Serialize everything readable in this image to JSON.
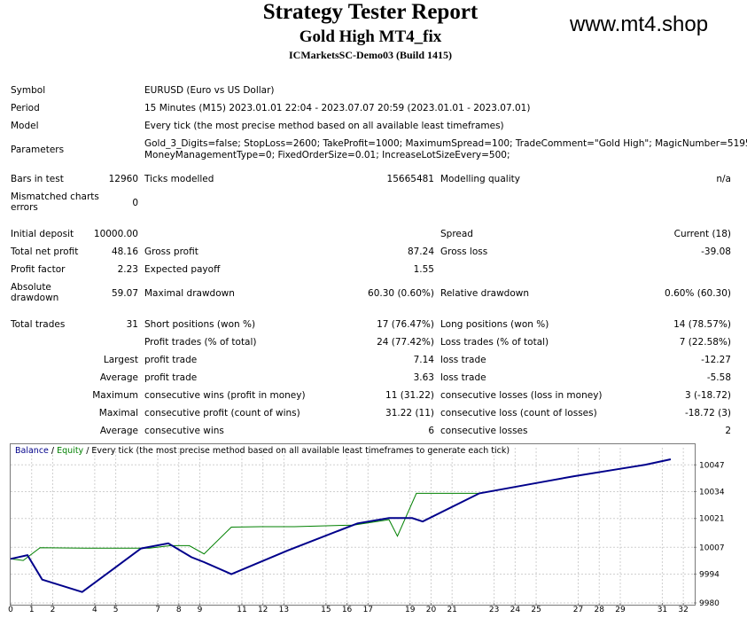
{
  "header": {
    "title": "Strategy Tester Report",
    "subtitle": "Gold High MT4_fix",
    "server": "ICMarketsSC-Demo03 (Build 1415)",
    "watermark": "www.mt4.shop"
  },
  "info": {
    "symbol_label": "Symbol",
    "symbol_value": "EURUSD (Euro vs US Dollar)",
    "period_label": "Period",
    "period_value": "15 Minutes (M15) 2023.01.01 22:04 - 2023.07.07 20:59 (2023.01.01 - 2023.07.01)",
    "model_label": "Model",
    "model_value": "Every tick (the most precise method based on all available least timeframes)",
    "parameters_label": "Parameters",
    "parameters_value_1": "Gold_3_Digits=false; StopLoss=2600; TakeProfit=1000; MaximumSpread=100; TradeComment=\"Gold High\"; MagicNumber=5195;",
    "parameters_value_2": "MoneyManagementType=0; FixedOrderSize=0.01; IncreaseLotSizeEvery=500;"
  },
  "bars": {
    "bars_label": "Bars in test",
    "bars_value": "12960",
    "ticks_label": "Ticks modelled",
    "ticks_value": "15665481",
    "quality_label": "Modelling quality",
    "quality_value": "n/a",
    "mismatch_label": "Mismatched charts errors",
    "mismatch_value": "0"
  },
  "results": {
    "initial_deposit_label": "Initial deposit",
    "initial_deposit_value": "10000.00",
    "spread_label": "Spread",
    "spread_value": "Current (18)",
    "net_profit_label": "Total net profit",
    "net_profit_value": "48.16",
    "gross_profit_label": "Gross profit",
    "gross_profit_value": "87.24",
    "gross_loss_label": "Gross loss",
    "gross_loss_value": "-39.08",
    "profit_factor_label": "Profit factor",
    "profit_factor_value": "2.23",
    "expected_payoff_label": "Expected payoff",
    "expected_payoff_value": "1.55",
    "abs_drawdown_label": "Absolute drawdown",
    "abs_drawdown_value": "59.07",
    "max_drawdown_label": "Maximal drawdown",
    "max_drawdown_value": "60.30 (0.60%)",
    "rel_drawdown_label": "Relative drawdown",
    "rel_drawdown_value": "0.60% (60.30)"
  },
  "trades": {
    "total_label": "Total trades",
    "total_value": "31",
    "short_label": "Short positions (won %)",
    "short_value": "17 (76.47%)",
    "long_label": "Long positions (won %)",
    "long_value": "14 (78.57%)",
    "profit_trades_label": "Profit trades (% of total)",
    "profit_trades_value": "24 (77.42%)",
    "loss_trades_label": "Loss trades (% of total)",
    "loss_trades_value": "7 (22.58%)",
    "largest_label": "Largest",
    "largest_profit_label": "profit trade",
    "largest_profit_value": "7.14",
    "largest_loss_label": "loss trade",
    "largest_loss_value": "-12.27",
    "average_label": "Average",
    "average_profit_label": "profit trade",
    "average_profit_value": "3.63",
    "average_loss_label": "loss trade",
    "average_loss_value": "-5.58",
    "maximum_label": "Maximum",
    "max_wins_label": "consecutive wins (profit in money)",
    "max_wins_value": "11 (31.22)",
    "max_losses_label": "consecutive losses (loss in money)",
    "max_losses_value": "3 (-18.72)",
    "maximal_label": "Maximal",
    "maximal_profit_label": "consecutive profit (count of wins)",
    "maximal_profit_value": "31.22 (11)",
    "maximal_loss_label": "consecutive loss (count of losses)",
    "maximal_loss_value": "-18.72 (3)",
    "avg_consec_label": "Average",
    "avg_wins_label": "consecutive wins",
    "avg_wins_value": "6",
    "avg_losses_label": "consecutive losses",
    "avg_losses_value": "2"
  },
  "chart_legend": {
    "balance": "Balance",
    "sep1": " / ",
    "equity": "Equity",
    "rest": " / Every tick (the most precise method based on all available least timeframes to generate each tick)"
  },
  "chart_data": {
    "type": "line",
    "x_ticks": [
      0,
      1,
      2,
      4,
      5,
      7,
      8,
      9,
      11,
      12,
      13,
      15,
      16,
      17,
      19,
      20,
      21,
      23,
      24,
      25,
      27,
      28,
      29,
      31,
      32
    ],
    "y_ticks": [
      9980,
      9994,
      10007,
      10021,
      10034,
      10047
    ],
    "xlim": [
      0,
      32.5
    ],
    "ylim": [
      9980,
      10051
    ],
    "colors": {
      "balance": "#00008b",
      "equity": "#008000"
    },
    "series": [
      {
        "name": "Balance",
        "x": [
          0,
          0.8,
          1.5,
          3.4,
          6.2,
          7.5,
          8.6,
          9.2,
          10.5,
          13.2,
          16.5,
          18,
          19.1,
          19.6,
          22.3,
          24.8,
          26.8,
          29,
          30.2,
          31.4
        ],
        "y": [
          10001.4,
          10003.2,
          9991.3,
          9985.3,
          10006.4,
          10008.9,
          10002.2,
          9999.8,
          9994,
          10005.5,
          10018.6,
          10021.2,
          10021.2,
          10019.5,
          10033.2,
          10037.8,
          10041.5,
          10045.1,
          10047.1,
          10049.7
        ]
      },
      {
        "name": "Equity",
        "x": [
          0,
          0.6,
          1.4,
          3.6,
          6.6,
          7.6,
          8.5,
          9.2,
          10.5,
          11.9,
          13.5,
          16.3,
          18,
          18.4,
          19.3,
          20.2,
          22.3,
          24.8,
          26.8,
          29,
          30.2,
          31.4
        ],
        "y": [
          10001.4,
          10000.6,
          10006.8,
          10006.6,
          10006.6,
          10007.8,
          10007.8,
          10003.8,
          10016.8,
          10017,
          10017,
          10017.8,
          10020.4,
          10012.4,
          10033.2,
          10033.2,
          10033.2,
          10037.8,
          10041.5,
          10045.1,
          10047.1,
          10049.7
        ]
      }
    ]
  }
}
